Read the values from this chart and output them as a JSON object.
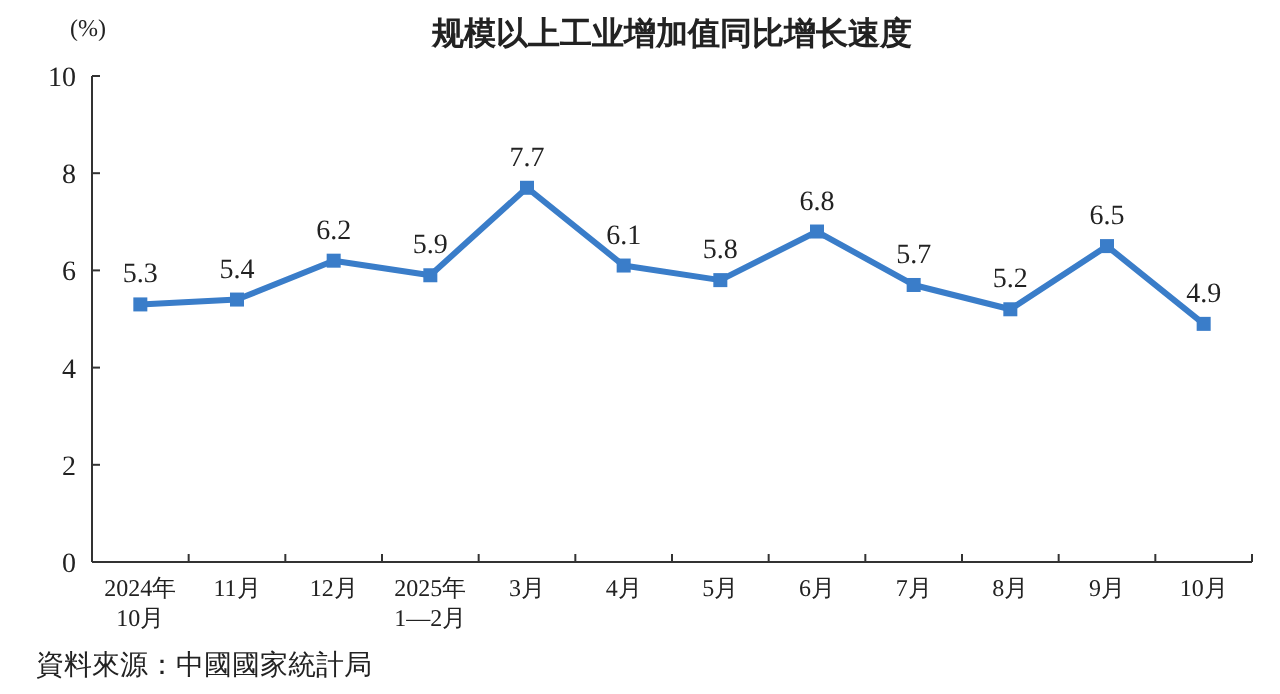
{
  "chart_data": {
    "type": "line",
    "title": "规模以上工业增加值同比增长速度",
    "ylabel": "(%)",
    "categories": [
      "2024年\n10月",
      "11月",
      "12月",
      "2025年\n1—2月",
      "3月",
      "4月",
      "5月",
      "6月",
      "7月",
      "8月",
      "9月",
      "10月"
    ],
    "series": [
      {
        "color": "#3a7dc9",
        "values": [
          5.3,
          5.4,
          6.2,
          5.9,
          7.7,
          6.1,
          5.8,
          6.8,
          5.7,
          5.2,
          6.5,
          4.9
        ]
      }
    ],
    "ylim": [
      0,
      10
    ],
    "yticks": [
      0,
      2,
      4,
      6,
      8,
      10
    ],
    "marker": "square",
    "line_style": "solid",
    "data_labels": true,
    "annotations": [
      "資料來源：中國國家統計局"
    ]
  }
}
